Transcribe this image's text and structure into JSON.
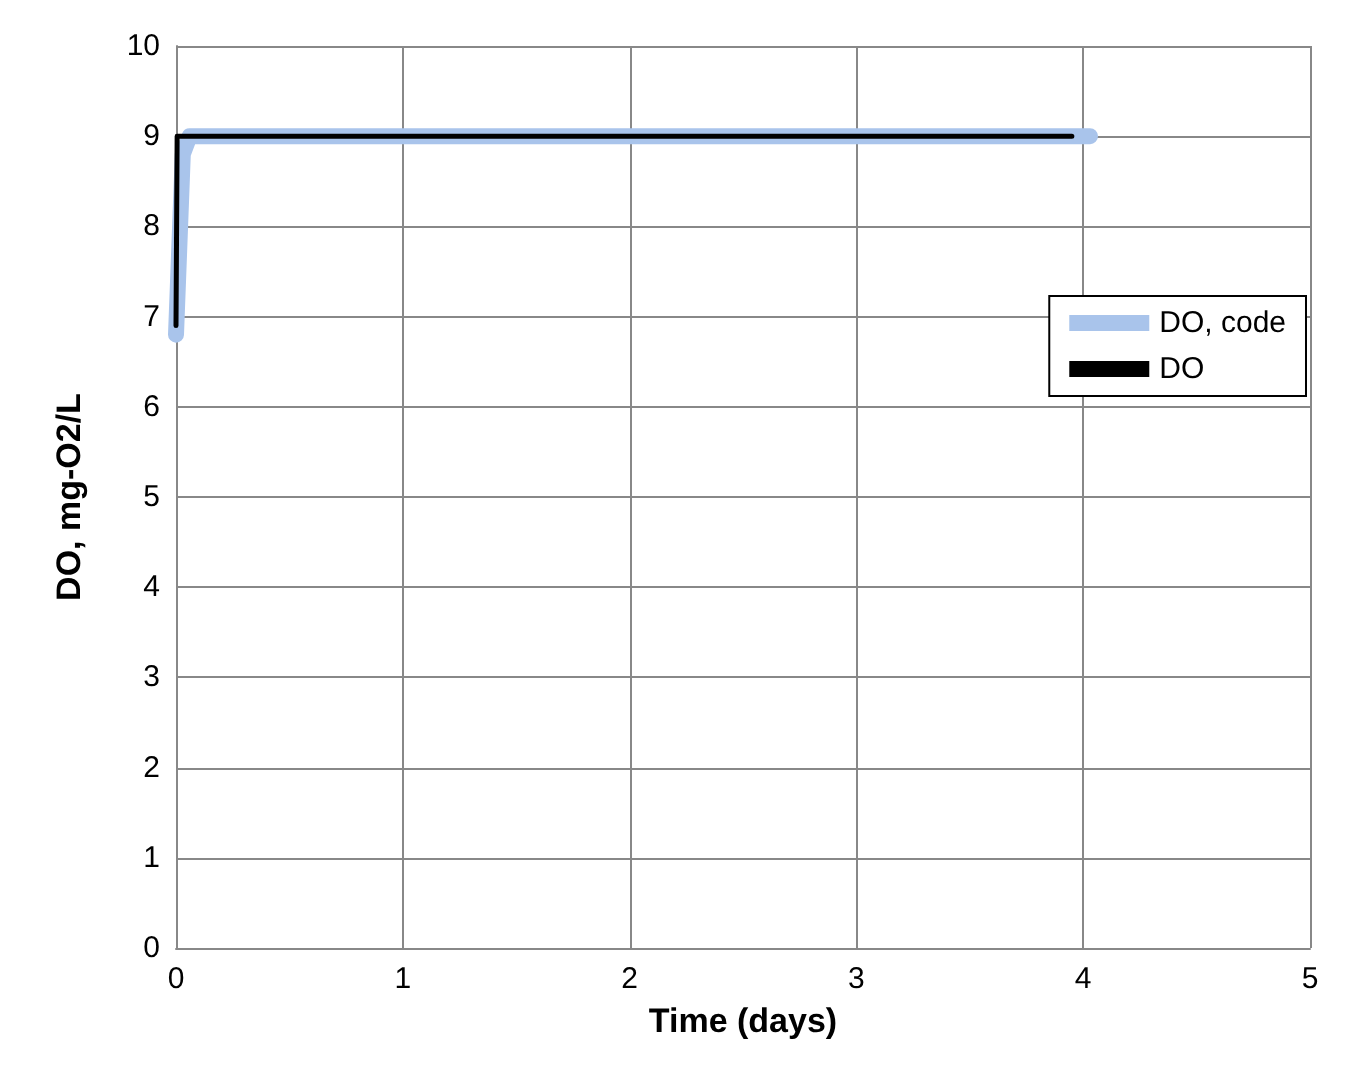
{
  "chart_data": {
    "type": "line",
    "xlabel": "Time (days)",
    "ylabel": "DO, mg-O2/L",
    "xlim": [
      0,
      5
    ],
    "xticks": [
      0,
      1,
      2,
      3,
      4,
      5
    ],
    "ylim": [
      0,
      10
    ],
    "yticks": [
      0,
      1,
      2,
      3,
      4,
      5,
      6,
      7,
      8,
      9,
      10
    ],
    "grid": true,
    "legend": "right",
    "marker": "none",
    "series": [
      {
        "name": "DO, code",
        "color": "#a9c4eb",
        "x": [
          0,
          0.03,
          0.06,
          4.03
        ],
        "values": [
          6.8,
          8.8,
          9,
          9
        ]
      },
      {
        "name": "DO",
        "color": "#000000",
        "x": [
          0,
          0.005,
          3.95
        ],
        "values": [
          6.9,
          9,
          9
        ]
      }
    ]
  }
}
